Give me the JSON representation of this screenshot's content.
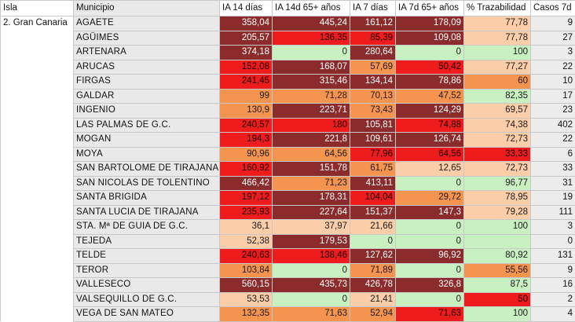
{
  "headers": [
    "Isla",
    "Municipio",
    "IA 14 días",
    "IA 14d 65+ años",
    "IA 7 días",
    "IA 7d 65+ años",
    "% Trazabilidad",
    "Casos 7d"
  ],
  "isla": "2. Gran Canaria",
  "level_colors": {
    "vh": "#8b2b2b",
    "h": "#ee1c1c",
    "m": "#f5944e",
    "l": "#fbcda8",
    "g": "#c9f0c1"
  },
  "rows": [
    {
      "municipio": "AGAETE",
      "cells": [
        {
          "v": "358,04",
          "l": "vh"
        },
        {
          "v": "445,24",
          "l": "vh"
        },
        {
          "v": "161,12",
          "l": "vh"
        },
        {
          "v": "178,09",
          "l": "vh"
        },
        {
          "v": "77,78",
          "l": "l"
        }
      ],
      "casos": "9"
    },
    {
      "municipio": "AGÜIMES",
      "cells": [
        {
          "v": "205,57",
          "l": "vh"
        },
        {
          "v": "136,35",
          "l": "h"
        },
        {
          "v": "85,39",
          "l": "h"
        },
        {
          "v": "109,08",
          "l": "vh"
        },
        {
          "v": "77,78",
          "l": "l"
        }
      ],
      "casos": "27"
    },
    {
      "municipio": "ARTENARA",
      "cells": [
        {
          "v": "374,18",
          "l": "vh"
        },
        {
          "v": "0",
          "l": "g"
        },
        {
          "v": "280,64",
          "l": "vh"
        },
        {
          "v": "0",
          "l": "g"
        },
        {
          "v": "100",
          "l": "g"
        }
      ],
      "casos": "3"
    },
    {
      "municipio": "ARUCAS",
      "cells": [
        {
          "v": "152,08",
          "l": "h"
        },
        {
          "v": "168,07",
          "l": "vh"
        },
        {
          "v": "57,69",
          "l": "m"
        },
        {
          "v": "50,42",
          "l": "h"
        },
        {
          "v": "77,27",
          "l": "l"
        }
      ],
      "casos": "22"
    },
    {
      "municipio": "FIRGAS",
      "cells": [
        {
          "v": "241,45",
          "l": "h"
        },
        {
          "v": "315,46",
          "l": "vh"
        },
        {
          "v": "134,14",
          "l": "vh"
        },
        {
          "v": "78,86",
          "l": "vh"
        },
        {
          "v": "60",
          "l": "m"
        }
      ],
      "casos": "10"
    },
    {
      "municipio": "GALDAR",
      "cells": [
        {
          "v": "99",
          "l": "m"
        },
        {
          "v": "71,28",
          "l": "m"
        },
        {
          "v": "70,13",
          "l": "m"
        },
        {
          "v": "47,52",
          "l": "m"
        },
        {
          "v": "82,35",
          "l": "g"
        }
      ],
      "casos": "17"
    },
    {
      "municipio": "INGENIO",
      "cells": [
        {
          "v": "130,9",
          "l": "m"
        },
        {
          "v": "223,71",
          "l": "vh"
        },
        {
          "v": "73,43",
          "l": "m"
        },
        {
          "v": "124,29",
          "l": "vh"
        },
        {
          "v": "69,57",
          "l": "l"
        }
      ],
      "casos": "23"
    },
    {
      "municipio": "LAS PALMAS DE G.C.",
      "cells": [
        {
          "v": "240,57",
          "l": "h"
        },
        {
          "v": "180",
          "l": "h"
        },
        {
          "v": "105,81",
          "l": "vh"
        },
        {
          "v": "74,88",
          "l": "h"
        },
        {
          "v": "74,38",
          "l": "l"
        }
      ],
      "casos": "402"
    },
    {
      "municipio": "MOGAN",
      "cells": [
        {
          "v": "194,3",
          "l": "h"
        },
        {
          "v": "221,8",
          "l": "vh"
        },
        {
          "v": "109,61",
          "l": "vh"
        },
        {
          "v": "126,74",
          "l": "vh"
        },
        {
          "v": "72,73",
          "l": "l"
        }
      ],
      "casos": "22"
    },
    {
      "municipio": "MOYA",
      "cells": [
        {
          "v": "90,96",
          "l": "m"
        },
        {
          "v": "64,56",
          "l": "m"
        },
        {
          "v": "77,96",
          "l": "h"
        },
        {
          "v": "64,56",
          "l": "h"
        },
        {
          "v": "33,33",
          "l": "h"
        }
      ],
      "casos": "6"
    },
    {
      "municipio": "SAN BARTOLOME DE TIRAJANA",
      "cells": [
        {
          "v": "160,92",
          "l": "h"
        },
        {
          "v": "151,78",
          "l": "vh"
        },
        {
          "v": "61,75",
          "l": "m"
        },
        {
          "v": "12,65",
          "l": "l"
        },
        {
          "v": "72,73",
          "l": "l"
        }
      ],
      "casos": "33"
    },
    {
      "municipio": "SAN NICOLAS DE TOLENTINO",
      "cells": [
        {
          "v": "466,42",
          "l": "vh"
        },
        {
          "v": "71,23",
          "l": "m"
        },
        {
          "v": "413,11",
          "l": "vh"
        },
        {
          "v": "0",
          "l": "g"
        },
        {
          "v": "96,77",
          "l": "g"
        }
      ],
      "casos": "31"
    },
    {
      "municipio": "SANTA BRIGIDA",
      "cells": [
        {
          "v": "197,12",
          "l": "h"
        },
        {
          "v": "178,31",
          "l": "vh"
        },
        {
          "v": "104,04",
          "l": "h"
        },
        {
          "v": "29,72",
          "l": "m"
        },
        {
          "v": "78,95",
          "l": "l"
        }
      ],
      "casos": "19"
    },
    {
      "municipio": "SANTA LUCIA DE TIRAJANA",
      "cells": [
        {
          "v": "235,93",
          "l": "h"
        },
        {
          "v": "227,64",
          "l": "vh"
        },
        {
          "v": "151,37",
          "l": "vh"
        },
        {
          "v": "147,3",
          "l": "vh"
        },
        {
          "v": "79,28",
          "l": "l"
        }
      ],
      "casos": "111"
    },
    {
      "municipio": "STA. Mª DE GUIA DE G.C.",
      "cells": [
        {
          "v": "36,1",
          "l": "l"
        },
        {
          "v": "37,97",
          "l": "l"
        },
        {
          "v": "21,66",
          "l": "l"
        },
        {
          "v": "0",
          "l": "g"
        },
        {
          "v": "100",
          "l": "g"
        }
      ],
      "casos": "3"
    },
    {
      "municipio": "TEJEDA",
      "cells": [
        {
          "v": "52,38",
          "l": "l"
        },
        {
          "v": "179,53",
          "l": "vh"
        },
        {
          "v": "0",
          "l": "g"
        },
        {
          "v": "0",
          "l": "g"
        },
        {
          "v": "",
          "l": "g"
        }
      ],
      "casos": "0"
    },
    {
      "municipio": "TELDE",
      "cells": [
        {
          "v": "240,63",
          "l": "h"
        },
        {
          "v": "138,46",
          "l": "h"
        },
        {
          "v": "127,62",
          "l": "vh"
        },
        {
          "v": "96,92",
          "l": "vh"
        },
        {
          "v": "80,92",
          "l": "g"
        }
      ],
      "casos": "131"
    },
    {
      "municipio": "TEROR",
      "cells": [
        {
          "v": "103,84",
          "l": "m"
        },
        {
          "v": "0",
          "l": "g"
        },
        {
          "v": "71,89",
          "l": "m"
        },
        {
          "v": "0",
          "l": "g"
        },
        {
          "v": "55,56",
          "l": "m"
        }
      ],
      "casos": "9"
    },
    {
      "municipio": "VALLESECO",
      "cells": [
        {
          "v": "560,15",
          "l": "vh"
        },
        {
          "v": "435,73",
          "l": "vh"
        },
        {
          "v": "426,78",
          "l": "vh"
        },
        {
          "v": "326,8",
          "l": "vh"
        },
        {
          "v": "87,5",
          "l": "g"
        }
      ],
      "casos": "16"
    },
    {
      "municipio": "VALSEQUILLO DE G.C.",
      "cells": [
        {
          "v": "53,53",
          "l": "l"
        },
        {
          "v": "0",
          "l": "g"
        },
        {
          "v": "21,41",
          "l": "l"
        },
        {
          "v": "0",
          "l": "g"
        },
        {
          "v": "50",
          "l": "h"
        }
      ],
      "casos": "2"
    },
    {
      "municipio": "VEGA DE SAN MATEO",
      "cells": [
        {
          "v": "132,35",
          "l": "m"
        },
        {
          "v": "71,63",
          "l": "m"
        },
        {
          "v": "52,94",
          "l": "m"
        },
        {
          "v": "71,63",
          "l": "h"
        },
        {
          "v": "100",
          "l": "g"
        }
      ],
      "casos": "4"
    }
  ]
}
